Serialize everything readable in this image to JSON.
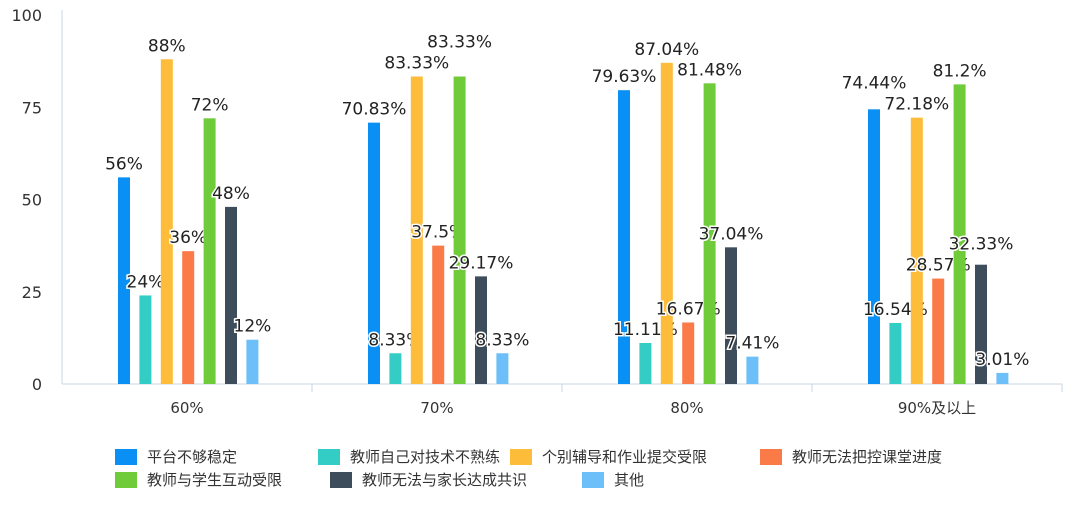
{
  "chart_data": {
    "type": "bar",
    "categories": [
      "60%",
      "70%",
      "80%",
      "90%及以上"
    ],
    "ylim": [
      0,
      100
    ],
    "yticks": [
      0,
      25,
      50,
      75,
      100
    ],
    "grid": false,
    "legend_position": "bottom",
    "value_suffix": "%",
    "series": [
      {
        "name": "平台不够稳定",
        "color": "#0a8ff5",
        "values": [
          56,
          70.83,
          79.63,
          74.44
        ]
      },
      {
        "name": "教师自己对技术不熟练",
        "color": "#33cdc6",
        "values": [
          24,
          8.33,
          11.11,
          16.54
        ]
      },
      {
        "name": "个别辅导和作业提交受限",
        "color": "#fdbc3a",
        "values": [
          88,
          83.33,
          87.04,
          72.18
        ]
      },
      {
        "name": "教师无法把控课堂进度",
        "color": "#fb7b48",
        "values": [
          36,
          37.5,
          16.67,
          28.57
        ]
      },
      {
        "name": "教师与学生互动受限",
        "color": "#70cb3a",
        "values": [
          72,
          83.33,
          81.48,
          81.2
        ]
      },
      {
        "name": "教师无法与家长达成共识",
        "color": "#3d4d5b",
        "values": [
          48,
          29.17,
          37.04,
          32.33
        ]
      },
      {
        "name": "其他",
        "color": "#6cbff8",
        "values": [
          12,
          8.33,
          7.41,
          3.01
        ]
      }
    ]
  }
}
